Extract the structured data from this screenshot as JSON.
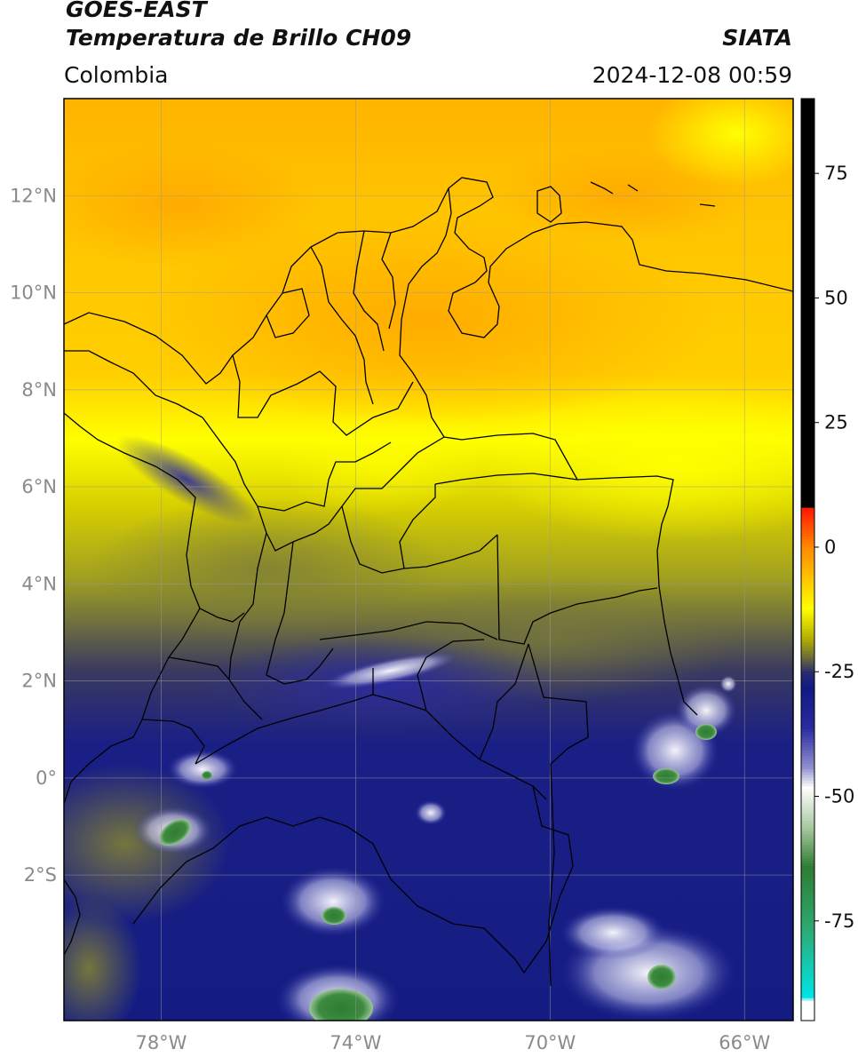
{
  "header": {
    "title_line1": "GOES-EAST",
    "title_line2": "Temperatura de Brillo CH09",
    "organization": "SIATA",
    "region": "Colombia",
    "timestamp": "2024-12-08 00:59"
  },
  "map": {
    "lon_range": [
      -80,
      -65
    ],
    "lat_range": [
      -5,
      14
    ],
    "lat_ticks": [
      {
        "value": 12,
        "label": "12°N"
      },
      {
        "value": 10,
        "label": "10°N"
      },
      {
        "value": 8,
        "label": "8°N"
      },
      {
        "value": 6,
        "label": "6°N"
      },
      {
        "value": 4,
        "label": "4°N"
      },
      {
        "value": 2,
        "label": "2°N"
      },
      {
        "value": 0,
        "label": "0°"
      },
      {
        "value": -2,
        "label": "2°S"
      }
    ],
    "lon_ticks": [
      {
        "value": -78,
        "label": "78°W"
      },
      {
        "value": -74,
        "label": "74°W"
      },
      {
        "value": -70,
        "label": "70°W"
      },
      {
        "value": -66,
        "label": "66°W"
      }
    ],
    "grid": true
  },
  "colorbar": {
    "range": [
      -95,
      90
    ],
    "ticks": [
      {
        "value": 75,
        "label": "75"
      },
      {
        "value": 50,
        "label": "50"
      },
      {
        "value": 25,
        "label": "25"
      },
      {
        "value": 0,
        "label": "0"
      },
      {
        "value": -25,
        "label": "-25"
      },
      {
        "value": -50,
        "label": "-50"
      },
      {
        "value": -75,
        "label": "-75"
      }
    ],
    "stops": [
      {
        "value": 90,
        "color": "#000000"
      },
      {
        "value": 8,
        "color": "#000000"
      },
      {
        "value": 7.9,
        "color": "#ff1a00"
      },
      {
        "value": 0,
        "color": "#ff8c00"
      },
      {
        "value": -8,
        "color": "#ffd700"
      },
      {
        "value": -12,
        "color": "#ffff00"
      },
      {
        "value": -18,
        "color": "#b5b000"
      },
      {
        "value": -22,
        "color": "#6a6a3a"
      },
      {
        "value": -25,
        "color": "#2a2a70"
      },
      {
        "value": -28,
        "color": "#101a80"
      },
      {
        "value": -36,
        "color": "#2a2aa0"
      },
      {
        "value": -44,
        "color": "#9090d0"
      },
      {
        "value": -48,
        "color": "#ffffff"
      },
      {
        "value": -56,
        "color": "#a8c8a0"
      },
      {
        "value": -64,
        "color": "#2e7d32"
      },
      {
        "value": -76,
        "color": "#2ea870"
      },
      {
        "value": -90,
        "color": "#00e5e5"
      },
      {
        "value": -91,
        "color": "#ffffff"
      },
      {
        "value": -95,
        "color": "#ffffff"
      }
    ]
  }
}
